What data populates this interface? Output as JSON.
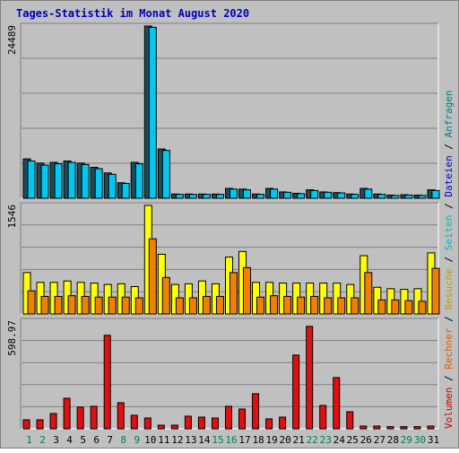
{
  "chart_data": {
    "type": "bar",
    "title": "Tages-Statistik im Monat August 2020",
    "colors": {
      "background": "#c0c0c0",
      "title": "#0000c0",
      "weekend_day_label": "#00804a",
      "weekday_day_label": "#000000",
      "anfragen": "#008080",
      "dateien": "#0000c0",
      "seiten": "#00c0c0",
      "besuche": "#c0a000",
      "rechner": "#e06000",
      "volumen": "#cc0000"
    },
    "legend_order_bottom_to_top": [
      "Volumen",
      "Rechner",
      "Besuche",
      "Seiten",
      "Dateien",
      "Anfragen"
    ],
    "x_axis": {
      "days": [
        "1",
        "2",
        "3",
        "4",
        "5",
        "6",
        "7",
        "8",
        "9",
        "10",
        "11",
        "12",
        "13",
        "14",
        "15",
        "16",
        "17",
        "18",
        "19",
        "20",
        "21",
        "22",
        "23",
        "24",
        "25",
        "26",
        "27",
        "28",
        "29",
        "30",
        "31"
      ],
      "weekend": [
        1,
        2,
        8,
        9,
        15,
        16,
        22,
        23,
        29,
        30
      ]
    },
    "charts": [
      {
        "name": "Anfragen / Dateien",
        "ymax_label": "24489",
        "ymax": 24489,
        "series": [
          {
            "name": "Anfragen",
            "color": "#1c4e5a",
            "values": [
              5600,
              5000,
              5100,
              5300,
              5000,
              4400,
              3600,
              2200,
              5100,
              24489,
              7000,
              600,
              600,
              600,
              600,
              1400,
              1300,
              600,
              1400,
              900,
              700,
              1200,
              900,
              800,
              600,
              1400,
              600,
              450,
              500,
              450,
              1200
            ]
          },
          {
            "name": "Dateien",
            "color": "#00c8f0",
            "values": [
              5300,
              4700,
              4900,
              5100,
              4800,
              4200,
              3400,
              2100,
              4900,
              24300,
              6800,
              550,
              550,
              550,
              550,
              1300,
              1200,
              550,
              1300,
              850,
              650,
              1100,
              850,
              750,
              550,
              1300,
              550,
              400,
              450,
              400,
              1100
            ]
          }
        ]
      },
      {
        "name": "Seiten / Besuche / Rechner",
        "ymax_label": "1546",
        "ymax": 1546,
        "series": [
          {
            "name": "Seiten",
            "color": "#00c8c8",
            "values": [
              0,
              0,
              0,
              0,
              0,
              0,
              0,
              0,
              0,
              0,
              0,
              0,
              0,
              0,
              0,
              0,
              0,
              0,
              0,
              0,
              0,
              0,
              0,
              0,
              0,
              0,
              0,
              0,
              0,
              0,
              0
            ]
          },
          {
            "name": "Besuche",
            "color": "#ffff00",
            "values": [
              590,
              450,
              450,
              470,
              450,
              440,
              420,
              430,
              390,
              1546,
              850,
              420,
              430,
              470,
              430,
              810,
              890,
              450,
              450,
              440,
              440,
              440,
              440,
              440,
              420,
              830,
              380,
              360,
              350,
              360,
              870
            ]
          },
          {
            "name": "Rechner",
            "color": "#f08000",
            "values": [
              330,
              250,
              250,
              260,
              250,
              240,
              240,
              240,
              230,
              1070,
              520,
              230,
              230,
              250,
              250,
              590,
              660,
              240,
              260,
              250,
              240,
              250,
              230,
              230,
              230,
              590,
              200,
              200,
              190,
              180,
              650
            ]
          }
        ]
      },
      {
        "name": "Volumen",
        "ymax_label": "598.97",
        "ymax": 598.97,
        "series": [
          {
            "name": "Volumen",
            "color": "#e01010",
            "values": [
              50,
              50,
              85,
              170,
              120,
              125,
              520,
              145,
              75,
              60,
              20,
              20,
              70,
              65,
              60,
              125,
              110,
              195,
              55,
              65,
              410,
              570,
              130,
              285,
              95,
              15,
              15,
              12,
              12,
              12,
              15
            ]
          }
        ]
      }
    ]
  }
}
